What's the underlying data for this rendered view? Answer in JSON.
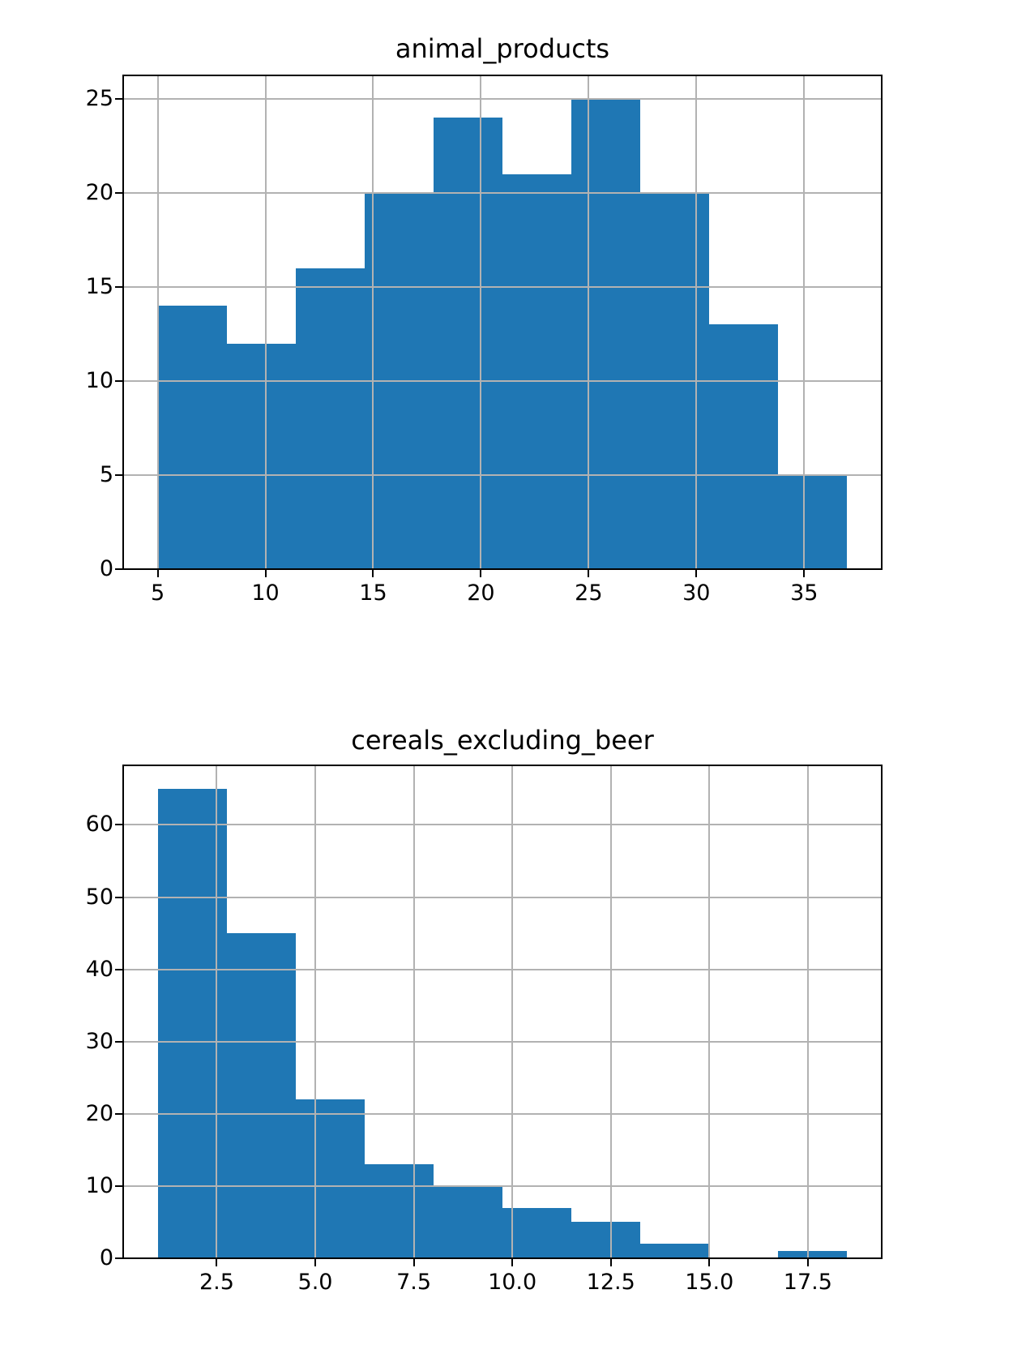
{
  "figure": {
    "background": "#ffffff"
  },
  "style": {
    "bar_color": "#1f77b4",
    "grid_color": "#b2b2b2",
    "axis_color": "#000000",
    "text_color": "#000000"
  },
  "chart_data": [
    {
      "type": "bar",
      "subtype": "histogram",
      "title": "animal_products",
      "xlabel": "",
      "ylabel": "",
      "bin_edges": [
        5.0,
        8.2,
        11.4,
        14.6,
        17.8,
        21.0,
        24.2,
        27.4,
        30.6,
        33.8,
        37.0
      ],
      "counts": [
        14,
        12,
        16,
        20,
        24,
        21,
        25,
        20,
        13,
        5
      ],
      "xlim": [
        3.4,
        38.6
      ],
      "ylim": [
        0,
        26.25
      ],
      "xtick_values": [
        5,
        10,
        15,
        20,
        25,
        30,
        35
      ],
      "xtick_labels": [
        "5",
        "10",
        "15",
        "20",
        "25",
        "30",
        "35"
      ],
      "ytick_values": [
        0,
        5,
        10,
        15,
        20,
        25
      ],
      "ytick_labels": [
        "0",
        "5",
        "10",
        "15",
        "20",
        "25"
      ],
      "grid": true,
      "legend": "none"
    },
    {
      "type": "bar",
      "subtype": "histogram",
      "title": "cereals_excluding_beer",
      "xlabel": "",
      "ylabel": "",
      "bin_edges": [
        1.0,
        2.75,
        4.5,
        6.25,
        8.0,
        9.75,
        11.5,
        13.25,
        15.0,
        16.75,
        18.5
      ],
      "counts": [
        65,
        45,
        22,
        13,
        10,
        7,
        5,
        2,
        0,
        1
      ],
      "xlim": [
        0.125,
        19.375
      ],
      "ylim": [
        0,
        68.25
      ],
      "xtick_values": [
        2.5,
        5.0,
        7.5,
        10.0,
        12.5,
        15.0,
        17.5
      ],
      "xtick_labels": [
        "2.5",
        "5.0",
        "7.5",
        "10.0",
        "12.5",
        "15.0",
        "17.5"
      ],
      "ytick_values": [
        0,
        10,
        20,
        30,
        40,
        50,
        60
      ],
      "ytick_labels": [
        "0",
        "10",
        "20",
        "30",
        "40",
        "50",
        "60"
      ],
      "grid": true,
      "legend": "none"
    }
  ]
}
